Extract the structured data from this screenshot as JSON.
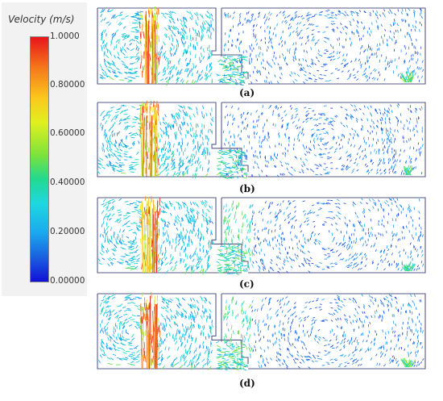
{
  "legend": {
    "title": "Velocity (m/s)",
    "ticks": [
      "1.0000",
      "0.80000",
      "0.60000",
      "0.40000",
      "0.20000",
      "0.00000"
    ],
    "tick_values": [
      1.0,
      0.8,
      0.6,
      0.4,
      0.2,
      0.0
    ],
    "colors": [
      "#e8141b",
      "#f4741b",
      "#fbc81d",
      "#e0f01f",
      "#7ee33a",
      "#22d98f",
      "#1ed8e0",
      "#1ba9ee",
      "#1a5fdf",
      "#1211d6"
    ]
  },
  "panels": [
    {
      "label": "(a)"
    },
    {
      "label": "(b)"
    },
    {
      "label": "(c)"
    },
    {
      "label": "(d)"
    }
  ]
}
